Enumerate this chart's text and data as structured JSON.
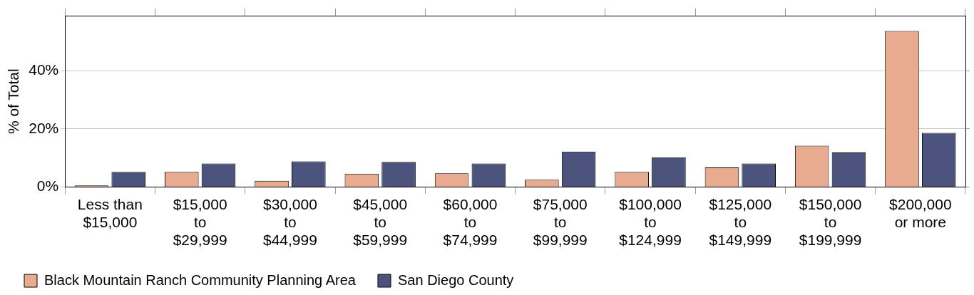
{
  "chart_data": {
    "type": "bar",
    "ylabel": "% of Total",
    "categories": [
      "Less than $15,000",
      "$15,000 to $29,999",
      "$30,000 to $44,999",
      "$45,000 to $59,999",
      "$60,000 to $74,999",
      "$75,000 to $99,999",
      "$100,000 to $124,999",
      "$125,000 to $149,999",
      "$150,000 to $199,999",
      "$200,000 or more"
    ],
    "series": [
      {
        "name": "Black Mountain Ranch Community Planning Area",
        "color": "#e8ab90",
        "values": [
          0.5,
          5.2,
          2.1,
          4.6,
          4.7,
          2.5,
          5.2,
          6.7,
          14.2,
          53.7
        ]
      },
      {
        "name": "San Diego County",
        "color": "#4c537c",
        "values": [
          5.2,
          8.1,
          8.8,
          8.6,
          8.1,
          12.2,
          10.2,
          8.1,
          11.9,
          18.6
        ]
      }
    ],
    "ylim": [
      0,
      59
    ],
    "yticks": [
      {
        "value": 0,
        "label": "0%"
      },
      {
        "value": 20,
        "label": "20%"
      },
      {
        "value": 40,
        "label": "40%"
      }
    ],
    "grid": "y",
    "legend": "bottom left"
  }
}
